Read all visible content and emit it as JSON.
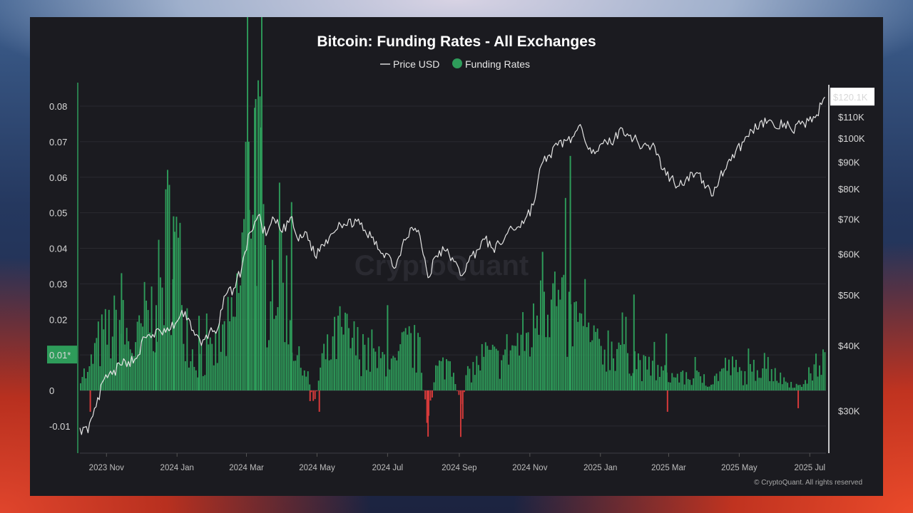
{
  "chart_data": {
    "type": "bar",
    "title": "Bitcoin: Funding Rates - All Exchanges",
    "legend": [
      {
        "name": "Price USD",
        "color": "#d9d9d9",
        "marker": "line"
      },
      {
        "name": "Funding Rates",
        "color": "#2e9c5a",
        "marker": "dot"
      }
    ],
    "colors": {
      "positive": "#2e9c5a",
      "negative": "#d63a3a",
      "price_line": "#e4e4e4",
      "current_tag_bg": "#ffffff",
      "current_tag_text": "#000000"
    },
    "left_axis": {
      "ticks": [
        -0.01,
        0,
        0.01,
        0.02,
        0.03,
        0.04,
        0.05,
        0.06,
        0.07,
        0.08
      ],
      "tick_labels": [
        "-0.01",
        "0",
        "0.01*",
        "0.02",
        "0.03",
        "0.04",
        "0.05",
        "0.06",
        "0.07",
        "0.08"
      ],
      "highlight_label": "0.01*",
      "range": [
        -0.0185,
        0.0805
      ]
    },
    "right_axis": {
      "scale": "log",
      "ticks": [
        30000,
        40000,
        50000,
        60000,
        70000,
        80000,
        90000,
        100000,
        110000
      ],
      "tick_labels": [
        "$30K",
        "$40K",
        "$50K",
        "$60K",
        "$70K",
        "$80K",
        "$90K",
        "$100K",
        "$110K"
      ],
      "current_label": "$120.1K",
      "current_value": 120100
    },
    "x_axis": {
      "tick_labels": [
        "2023 Nov",
        "2024 Jan",
        "2024 Mar",
        "2024 May",
        "2024 Jul",
        "2024 Sep",
        "2024 Nov",
        "2025 Jan",
        "2025 Mar",
        "2025 May",
        "2025 Jul"
      ],
      "range": [
        "2023-10-09",
        "2025-07-15"
      ]
    },
    "grid": true,
    "series": [
      {
        "name": "Price USD",
        "points": [
          [
            "2023-10-09",
            27800
          ],
          [
            "2023-10-16",
            27200
          ],
          [
            "2023-10-23",
            30500
          ],
          [
            "2023-10-30",
            34500
          ],
          [
            "2023-11-06",
            35200
          ],
          [
            "2023-11-13",
            36700
          ],
          [
            "2023-11-20",
            37300
          ],
          [
            "2023-11-27",
            37800
          ],
          [
            "2023-12-04",
            41500
          ],
          [
            "2023-12-11",
            42000
          ],
          [
            "2023-12-18",
            42500
          ],
          [
            "2023-12-25",
            42700
          ],
          [
            "2024-01-01",
            44500
          ],
          [
            "2024-01-08",
            46500
          ],
          [
            "2024-01-15",
            42800
          ],
          [
            "2024-01-22",
            40000
          ],
          [
            "2024-01-29",
            42500
          ],
          [
            "2024-02-05",
            43000
          ],
          [
            "2024-02-12",
            50000
          ],
          [
            "2024-02-19",
            51500
          ],
          [
            "2024-02-26",
            56500
          ],
          [
            "2024-03-04",
            66000
          ],
          [
            "2024-03-11",
            71000
          ],
          [
            "2024-03-18",
            65000
          ],
          [
            "2024-03-25",
            70000
          ],
          [
            "2024-04-01",
            66000
          ],
          [
            "2024-04-08",
            70500
          ],
          [
            "2024-04-15",
            63500
          ],
          [
            "2024-04-22",
            66000
          ],
          [
            "2024-04-29",
            59500
          ],
          [
            "2024-05-06",
            62500
          ],
          [
            "2024-05-13",
            65500
          ],
          [
            "2024-05-20",
            69000
          ],
          [
            "2024-05-27",
            68000
          ],
          [
            "2024-06-03",
            70000
          ],
          [
            "2024-06-10",
            66500
          ],
          [
            "2024-06-17",
            64500
          ],
          [
            "2024-06-24",
            61000
          ],
          [
            "2024-07-01",
            60000
          ],
          [
            "2024-07-08",
            56500
          ],
          [
            "2024-07-15",
            64000
          ],
          [
            "2024-07-22",
            67500
          ],
          [
            "2024-07-29",
            65000
          ],
          [
            "2024-08-05",
            54000
          ],
          [
            "2024-08-12",
            59500
          ],
          [
            "2024-08-19",
            61000
          ],
          [
            "2024-08-26",
            59000
          ],
          [
            "2024-09-02",
            54500
          ],
          [
            "2024-09-09",
            58000
          ],
          [
            "2024-09-16",
            61000
          ],
          [
            "2024-09-23",
            64000
          ],
          [
            "2024-09-30",
            61500
          ],
          [
            "2024-10-07",
            62500
          ],
          [
            "2024-10-14",
            67000
          ],
          [
            "2024-10-21",
            67500
          ],
          [
            "2024-10-28",
            70000
          ],
          [
            "2024-11-04",
            74500
          ],
          [
            "2024-11-11",
            89000
          ],
          [
            "2024-11-18",
            93000
          ],
          [
            "2024-11-25",
            97000
          ],
          [
            "2024-12-02",
            99000
          ],
          [
            "2024-12-09",
            101000
          ],
          [
            "2024-12-16",
            104500
          ],
          [
            "2024-12-23",
            96000
          ],
          [
            "2024-12-30",
            94500
          ],
          [
            "2025-01-06",
            98500
          ],
          [
            "2025-01-13",
            99500
          ],
          [
            "2025-01-20",
            104500
          ],
          [
            "2025-01-27",
            101500
          ],
          [
            "2025-02-03",
            97500
          ],
          [
            "2025-02-10",
            97000
          ],
          [
            "2025-02-17",
            96500
          ],
          [
            "2025-02-24",
            87000
          ],
          [
            "2025-03-03",
            84000
          ],
          [
            "2025-03-10",
            81000
          ],
          [
            "2025-03-17",
            84500
          ],
          [
            "2025-03-24",
            85500
          ],
          [
            "2025-03-31",
            83000
          ],
          [
            "2025-04-07",
            77500
          ],
          [
            "2025-04-14",
            84000
          ],
          [
            "2025-04-21",
            90000
          ],
          [
            "2025-04-28",
            94500
          ],
          [
            "2025-05-05",
            98500
          ],
          [
            "2025-05-12",
            103500
          ],
          [
            "2025-05-19",
            107500
          ],
          [
            "2025-05-26",
            108000
          ],
          [
            "2025-06-02",
            104500
          ],
          [
            "2025-06-09",
            107000
          ],
          [
            "2025-06-16",
            103000
          ],
          [
            "2025-06-23",
            106500
          ],
          [
            "2025-06-30",
            108000
          ],
          [
            "2025-07-07",
            111000
          ],
          [
            "2025-07-14",
            120100
          ]
        ]
      },
      {
        "name": "Funding Rates",
        "points": [
          [
            "2023-10-09",
            0.006
          ],
          [
            "2023-10-16",
            0.004
          ],
          [
            "2023-10-23",
            0.012
          ],
          [
            "2023-10-30",
            0.015
          ],
          [
            "2023-11-06",
            0.017
          ],
          [
            "2023-11-13",
            0.019
          ],
          [
            "2023-11-20",
            0.014
          ],
          [
            "2023-11-27",
            0.012
          ],
          [
            "2023-12-04",
            0.02
          ],
          [
            "2023-12-11",
            0.022
          ],
          [
            "2023-12-18",
            0.028
          ],
          [
            "2023-12-25",
            0.045
          ],
          [
            "2024-01-01",
            0.038
          ],
          [
            "2024-01-08",
            0.024
          ],
          [
            "2024-01-15",
            0.01
          ],
          [
            "2024-01-22",
            0.008
          ],
          [
            "2024-01-29",
            0.009
          ],
          [
            "2024-02-05",
            0.012
          ],
          [
            "2024-02-12",
            0.016
          ],
          [
            "2024-02-19",
            0.018
          ],
          [
            "2024-02-26",
            0.035
          ],
          [
            "2024-03-04",
            0.072
          ],
          [
            "2024-03-11",
            0.065
          ],
          [
            "2024-03-18",
            0.03
          ],
          [
            "2024-03-25",
            0.034
          ],
          [
            "2024-04-01",
            0.038
          ],
          [
            "2024-04-08",
            0.02
          ],
          [
            "2024-04-15",
            0.008
          ],
          [
            "2024-04-22",
            0.006
          ],
          [
            "2024-04-29",
            -0.004
          ],
          [
            "2024-05-06",
            0.009
          ],
          [
            "2024-05-13",
            0.011
          ],
          [
            "2024-05-20",
            0.016
          ],
          [
            "2024-05-27",
            0.015
          ],
          [
            "2024-06-03",
            0.013
          ],
          [
            "2024-06-10",
            0.011
          ],
          [
            "2024-06-17",
            0.009
          ],
          [
            "2024-06-24",
            0.008
          ],
          [
            "2024-07-01",
            0.01
          ],
          [
            "2024-07-08",
            0.006
          ],
          [
            "2024-07-15",
            0.012
          ],
          [
            "2024-07-22",
            0.013
          ],
          [
            "2024-07-29",
            0.01
          ],
          [
            "2024-08-05",
            -0.012
          ],
          [
            "2024-08-12",
            0.006
          ],
          [
            "2024-08-19",
            0.007
          ],
          [
            "2024-08-26",
            0.009
          ],
          [
            "2024-09-02",
            -0.006
          ],
          [
            "2024-09-09",
            0.005
          ],
          [
            "2024-09-16",
            0.007
          ],
          [
            "2024-09-23",
            0.01
          ],
          [
            "2024-09-30",
            0.009
          ],
          [
            "2024-10-07",
            0.008
          ],
          [
            "2024-10-14",
            0.012
          ],
          [
            "2024-10-21",
            0.013
          ],
          [
            "2024-10-28",
            0.015
          ],
          [
            "2024-11-04",
            0.016
          ],
          [
            "2024-11-11",
            0.034
          ],
          [
            "2024-11-18",
            0.03
          ],
          [
            "2024-11-25",
            0.024
          ],
          [
            "2024-12-02",
            0.02
          ],
          [
            "2024-12-09",
            0.019
          ],
          [
            "2024-12-16",
            0.017
          ],
          [
            "2024-12-23",
            0.013
          ],
          [
            "2024-12-30",
            0.011
          ],
          [
            "2025-01-06",
            0.013
          ],
          [
            "2025-01-13",
            0.012
          ],
          [
            "2025-01-20",
            0.015
          ],
          [
            "2025-01-27",
            0.011
          ],
          [
            "2025-02-03",
            0.008
          ],
          [
            "2025-02-10",
            0.006
          ],
          [
            "2025-02-17",
            0.006
          ],
          [
            "2025-02-24",
            0.005
          ],
          [
            "2025-03-03",
            0.004
          ],
          [
            "2025-03-10",
            0.004
          ],
          [
            "2025-03-17",
            0.003
          ],
          [
            "2025-03-24",
            0.004
          ],
          [
            "2025-03-31",
            0.003
          ],
          [
            "2025-04-07",
            0.002
          ],
          [
            "2025-04-14",
            0.005
          ],
          [
            "2025-04-21",
            0.007
          ],
          [
            "2025-04-28",
            0.006
          ],
          [
            "2025-05-05",
            0.004
          ],
          [
            "2025-05-12",
            0.005
          ],
          [
            "2025-05-19",
            0.008
          ],
          [
            "2025-05-26",
            0.007
          ],
          [
            "2025-06-02",
            0.004
          ],
          [
            "2025-06-09",
            0.003
          ],
          [
            "2025-06-16",
            0.002
          ],
          [
            "2025-06-23",
            0.001
          ],
          [
            "2025-06-30",
            0.004
          ],
          [
            "2025-07-07",
            0.007
          ],
          [
            "2025-07-14",
            0.009
          ]
        ],
        "spikes": [
          [
            "2023-10-18",
            -0.006
          ],
          [
            "2023-11-14",
            0.033
          ],
          [
            "2023-12-14",
            0.024
          ],
          [
            "2023-12-29",
            0.049
          ],
          [
            "2024-01-20",
            0.021
          ],
          [
            "2024-03-03",
            0.07
          ],
          [
            "2024-03-09",
            0.082
          ],
          [
            "2024-03-13",
            0.074
          ],
          [
            "2024-04-09",
            0.053
          ],
          [
            "2024-04-25",
            -0.003
          ],
          [
            "2024-05-03",
            -0.006
          ],
          [
            "2024-07-01",
            0.024
          ],
          [
            "2024-08-05",
            -0.013
          ],
          [
            "2024-09-04",
            -0.008
          ],
          [
            "2024-11-12",
            0.039
          ],
          [
            "2024-11-21",
            0.03
          ],
          [
            "2024-12-06",
            0.066
          ],
          [
            "2025-01-30",
            0.027
          ],
          [
            "2025-02-27",
            0.016
          ],
          [
            "2025-02-28",
            -0.006
          ],
          [
            "2025-06-21",
            -0.005
          ]
        ]
      }
    ]
  },
  "footer": {
    "copyright": "© CryptoQuant. All rights reserved"
  },
  "watermark": "CryptoQuant"
}
